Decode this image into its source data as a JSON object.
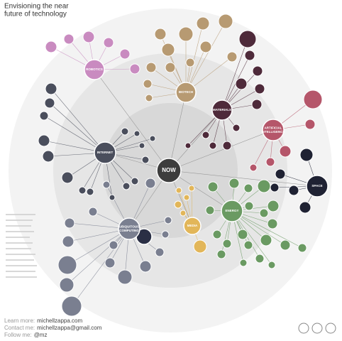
{
  "header": {
    "title_lines": [
      "Envisioning the near",
      "future of technology"
    ]
  },
  "hubs": [
    {
      "label": "NOW",
      "color": "#3d3d3d"
    },
    {
      "label": "ROBOTICS",
      "color": "#c98bc0"
    },
    {
      "label": "BIOTECH",
      "color": "#b79a72"
    },
    {
      "label": "MATERIALS",
      "color": "#4e2a3a"
    },
    {
      "label": "ARTIFICIAL INTELLIGENCE",
      "color": "#b5566a"
    },
    {
      "label": "SPACE",
      "color": "#1f2233"
    },
    {
      "label": "ENERGY",
      "color": "#6a9a62"
    },
    {
      "label": "MEDIA",
      "color": "#e2b659"
    },
    {
      "label": "INTERNET",
      "color": "#4a4e5c"
    },
    {
      "label": "UBIQUITOUS COMPUTING",
      "color": "#7a7f90"
    }
  ],
  "footer": [
    {
      "label": "Learn more:",
      "value": "michellzappa.com"
    },
    {
      "label": "Contact me:",
      "value": "michellzappa@gmail.com"
    },
    {
      "label": "Follow me:",
      "value": "@mz"
    }
  ]
}
